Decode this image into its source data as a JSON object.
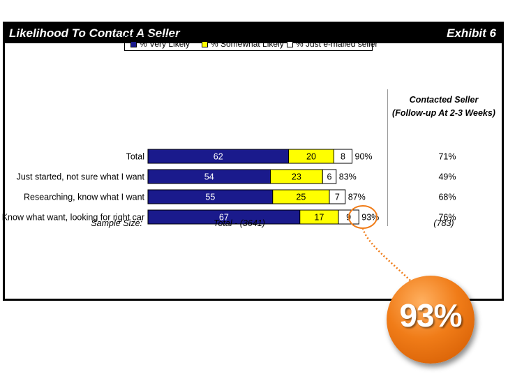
{
  "header": {
    "title": "Likelihood To Contact A Seller",
    "exhibit": "Exhibit 6"
  },
  "legend": {
    "very_likely": "% Very Likely",
    "somewhat_likely": "% Somewhat Likely",
    "just_emailed": "% Just e-mailed seller"
  },
  "colors": {
    "very_likely": "#1a1a8c",
    "somewhat_likely": "#ffff00",
    "just_emailed": "#ffffff",
    "callout": "#f07c18"
  },
  "contacted": {
    "heading_line1": "Contacted Seller",
    "heading_line2": "(Follow-up At 2-3 Weeks)"
  },
  "sample": {
    "label": "Sample Size:",
    "total": "Total - (3641)",
    "contacted": "(783)"
  },
  "callout": {
    "value": "93%"
  },
  "chart_data": {
    "type": "bar",
    "orientation": "horizontal",
    "stacked": true,
    "categories": [
      "Total",
      "Just started, not sure what I want",
      "Researching, know what I want",
      "Know what want, looking for right car"
    ],
    "series": [
      {
        "name": "% Very Likely",
        "values": [
          62,
          54,
          55,
          67
        ]
      },
      {
        "name": "% Somewhat Likely",
        "values": [
          20,
          23,
          25,
          17
        ]
      },
      {
        "name": "% Just e-mailed seller",
        "values": [
          8,
          6,
          7,
          9
        ]
      }
    ],
    "totals": [
      "90%",
      "83%",
      "87%",
      "93%"
    ],
    "contacted_seller": [
      "71%",
      "49%",
      "68%",
      "76%"
    ],
    "xlim": [
      0,
      100
    ],
    "legend_position": "top"
  }
}
